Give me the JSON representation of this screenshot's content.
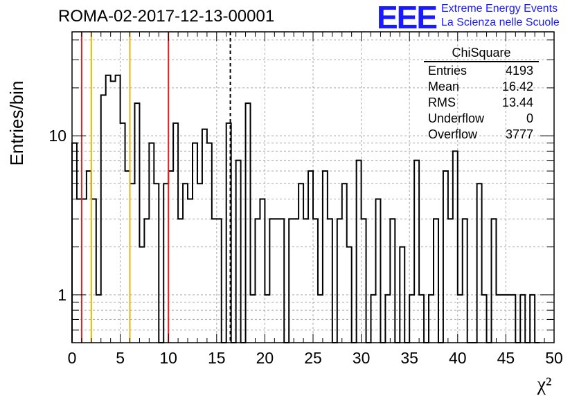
{
  "title": "ROMA-02-2017-12-13-00001",
  "logo": {
    "mark": "EEE",
    "line1": "Extreme Energy Events",
    "line2": "La Scienza nelle Scuole",
    "color": "#1a1aff"
  },
  "stats": {
    "name": "ChiSquare",
    "rows": [
      {
        "label": "Entries",
        "value": "4193"
      },
      {
        "label": "Mean",
        "value": "16.42"
      },
      {
        "label": "RMS",
        "value": "13.44"
      },
      {
        "label": "Underflow",
        "value": "0"
      },
      {
        "label": "Overflow",
        "value": "3777"
      }
    ]
  },
  "chart_data": {
    "type": "bar",
    "histogram": "step",
    "ylabel": "Entries/bin",
    "xlabel": "χ²",
    "xlim": [
      0,
      50
    ],
    "ylim": [
      0.5,
      45
    ],
    "yscale": "log",
    "grid": true,
    "bin_width": 0.5,
    "x_ticks": [
      0,
      5,
      10,
      15,
      20,
      25,
      30,
      35,
      40,
      45,
      50
    ],
    "x_tick_labels": [
      "0",
      "5",
      "10",
      "15",
      "20",
      "25",
      "30",
      "35",
      "40",
      "45",
      "50"
    ],
    "y_ticks": [
      1,
      10
    ],
    "y_tick_labels": [
      "1",
      "10"
    ],
    "values": [
      9,
      4,
      4,
      6,
      4,
      1,
      18,
      24,
      22,
      24,
      12,
      6,
      5,
      16,
      2,
      3,
      9,
      5,
      0,
      5,
      6,
      12,
      3,
      5,
      4,
      9,
      5,
      11,
      9,
      3,
      3,
      0,
      12,
      0,
      7,
      0,
      16,
      1,
      3,
      4,
      1,
      3,
      3,
      0,
      3,
      3,
      0,
      5,
      3,
      1,
      5,
      3,
      0,
      3,
      3,
      0,
      5,
      2,
      0,
      1,
      3,
      0,
      7,
      4,
      1,
      2,
      0,
      4,
      5,
      3,
      3,
      1,
      0,
      1,
      0,
      1,
      4,
      0,
      2,
      1,
      0,
      1,
      1,
      0,
      7,
      1,
      0,
      1,
      3,
      0,
      8,
      1,
      0,
      0,
      5,
      3,
      0,
      0,
      1,
      0,
      0,
      0,
      1,
      0,
      0,
      0,
      1,
      0,
      0,
      0,
      0,
      0,
      0,
      0,
      0,
      0,
      0,
      0,
      0,
      0,
      0,
      0,
      0,
      0,
      0,
      0,
      0,
      0,
      0,
      0
    ],
    "steps": [
      [
        0,
        9
      ],
      [
        0.5,
        4
      ],
      [
        1.5,
        6
      ],
      [
        2,
        4
      ],
      [
        2.5,
        1
      ],
      [
        3,
        18
      ],
      [
        3.5,
        24
      ],
      [
        4,
        22
      ],
      [
        4.5,
        24
      ],
      [
        5,
        12
      ],
      [
        5.5,
        6
      ],
      [
        6,
        5
      ],
      [
        6.5,
        16
      ],
      [
        7,
        2
      ],
      [
        7.5,
        3
      ],
      [
        8,
        9
      ],
      [
        8.5,
        5
      ],
      [
        9,
        0
      ],
      [
        9.5,
        5
      ],
      [
        10,
        6
      ],
      [
        10.5,
        12
      ],
      [
        11,
        3
      ],
      [
        11.5,
        5
      ],
      [
        12,
        4
      ],
      [
        12.5,
        9
      ],
      [
        13,
        5
      ],
      [
        13.5,
        11
      ],
      [
        14,
        9
      ],
      [
        14.5,
        3
      ],
      [
        15,
        3
      ],
      [
        15.5,
        0
      ],
      [
        16,
        12
      ],
      [
        16.5,
        0
      ],
      [
        17,
        7
      ],
      [
        17.5,
        0
      ],
      [
        18,
        16
      ],
      [
        18.5,
        1
      ],
      [
        19,
        3
      ],
      [
        19.5,
        4
      ],
      [
        20,
        1
      ],
      [
        20.5,
        3
      ],
      [
        22,
        0
      ],
      [
        22.5,
        3
      ],
      [
        23.5,
        5
      ],
      [
        24,
        3
      ],
      [
        24.5,
        6
      ],
      [
        25,
        3
      ],
      [
        25.5,
        1
      ],
      [
        26,
        6
      ],
      [
        26.5,
        3
      ],
      [
        27,
        0
      ],
      [
        27.5,
        3
      ],
      [
        28,
        5
      ],
      [
        28.5,
        2
      ],
      [
        29,
        0
      ],
      [
        29.5,
        7
      ],
      [
        30,
        3
      ],
      [
        30.5,
        0
      ],
      [
        31,
        1
      ],
      [
        31.5,
        4
      ],
      [
        32,
        0
      ],
      [
        32.5,
        1
      ],
      [
        33,
        3
      ],
      [
        33.5,
        0
      ],
      [
        34,
        2
      ],
      [
        34.5,
        0
      ],
      [
        35,
        1
      ],
      [
        35.5,
        7
      ],
      [
        36,
        1
      ],
      [
        36.5,
        0
      ],
      [
        37,
        1
      ],
      [
        37.5,
        3
      ],
      [
        38,
        0
      ],
      [
        38.5,
        6
      ],
      [
        39,
        3
      ],
      [
        39.5,
        8
      ],
      [
        40,
        1
      ],
      [
        40.5,
        3
      ],
      [
        41,
        0
      ],
      [
        41.5,
        0
      ],
      [
        42,
        5
      ],
      [
        42.5,
        1
      ],
      [
        43,
        0
      ],
      [
        43.5,
        3
      ],
      [
        44,
        1
      ],
      [
        45,
        1
      ],
      [
        46,
        0
      ],
      [
        46.5,
        1
      ],
      [
        47,
        0
      ],
      [
        47.5,
        1
      ],
      [
        48,
        0
      ]
    ],
    "vertical_lines": [
      {
        "x": 1,
        "color": "#dd2222",
        "style": "solid"
      },
      {
        "x": 2,
        "color": "#f0b400",
        "style": "solid"
      },
      {
        "x": 6,
        "color": "#f0b400",
        "style": "solid"
      },
      {
        "x": 10,
        "color": "#dd2222",
        "style": "solid"
      },
      {
        "x": 16.42,
        "color": "#000000",
        "style": "dashed"
      }
    ]
  }
}
